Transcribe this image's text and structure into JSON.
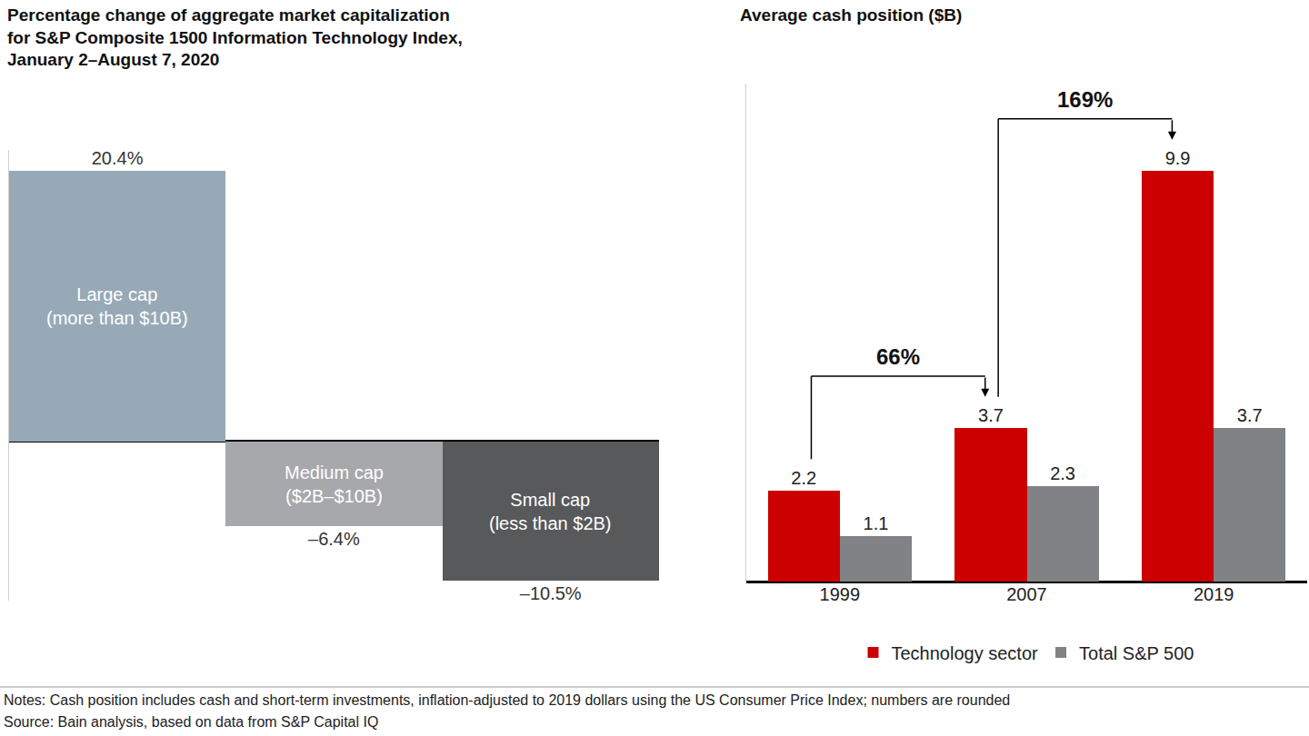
{
  "chart_data": [
    {
      "type": "bar",
      "title": "Percentage change of aggregate market capitalization\nfor S&P Composite 1500 Information Technology Index,\nJanuary 2–August 7, 2020",
      "categories": [
        "Large cap\n(more than $10B)",
        "Medium cap\n($2B–$10B)",
        "Small cap\n(less than $2B)"
      ],
      "values": [
        20.4,
        -6.4,
        -10.5
      ],
      "value_labels": [
        "20.4%",
        "–6.4%",
        "–10.5%"
      ],
      "colors": [
        "#97a9b7",
        "#a6a8ab",
        "#58595b"
      ],
      "ylim": [
        -12,
        22
      ],
      "yticks": [
        0
      ],
      "data_labels": true,
      "tick_labels": false
    },
    {
      "type": "bar",
      "title": "Average cash position ($B)",
      "categories": [
        "1999",
        "2007",
        "2019"
      ],
      "series": [
        {
          "name": "Technology sector",
          "color": "#cc0000",
          "values": [
            2.2,
            3.7,
            9.9
          ]
        },
        {
          "name": "Total S&P 500",
          "color": "#808285",
          "values": [
            1.1,
            2.3,
            3.7
          ]
        }
      ],
      "ylim": [
        0,
        12
      ],
      "yticks": [
        0
      ],
      "data_labels": true,
      "tick_labels": "x",
      "legend": "bottom",
      "annotations": [
        {
          "text": "66%",
          "from": "1999",
          "to": "2007"
        },
        {
          "text": "169%",
          "from": "2007",
          "to": "2019"
        }
      ]
    }
  ],
  "notes": "Notes: Cash position includes cash and short-term investments, inflation-adjusted to 2019 dollars using the US Consumer Price Index; numbers are rounded",
  "source": "Source: Bain analysis, based on data from S&P Capital IQ"
}
